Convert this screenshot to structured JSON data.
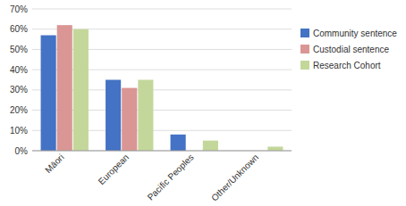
{
  "chart_data": {
    "type": "bar",
    "categories": [
      "Māori",
      "European",
      "Pacific Peoples",
      "Other/Unknown"
    ],
    "series": [
      {
        "name": "Community sentence",
        "color": "#4472C4",
        "values": [
          0.57,
          0.35,
          0.08,
          0.0
        ]
      },
      {
        "name": "Custodial sentence",
        "color": "#DA9694",
        "values": [
          0.62,
          0.31,
          0.0,
          0.0
        ]
      },
      {
        "name": "Research Cohort",
        "color": "#C4D79B",
        "values": [
          0.6,
          0.35,
          0.05,
          0.02
        ]
      }
    ],
    "ylim": [
      0,
      0.7
    ],
    "yticks": [
      {
        "value": 0,
        "label": "0%"
      },
      {
        "value": 0.1,
        "label": "10%"
      },
      {
        "value": 0.2,
        "label": "20%"
      },
      {
        "value": 0.3,
        "label": "30%"
      },
      {
        "value": 0.4,
        "label": "40%"
      },
      {
        "value": 0.5,
        "label": "50%"
      },
      {
        "value": 0.6,
        "label": "60%"
      },
      {
        "value": 0.7,
        "label": "70%"
      }
    ],
    "grid": true,
    "legend": "right"
  }
}
